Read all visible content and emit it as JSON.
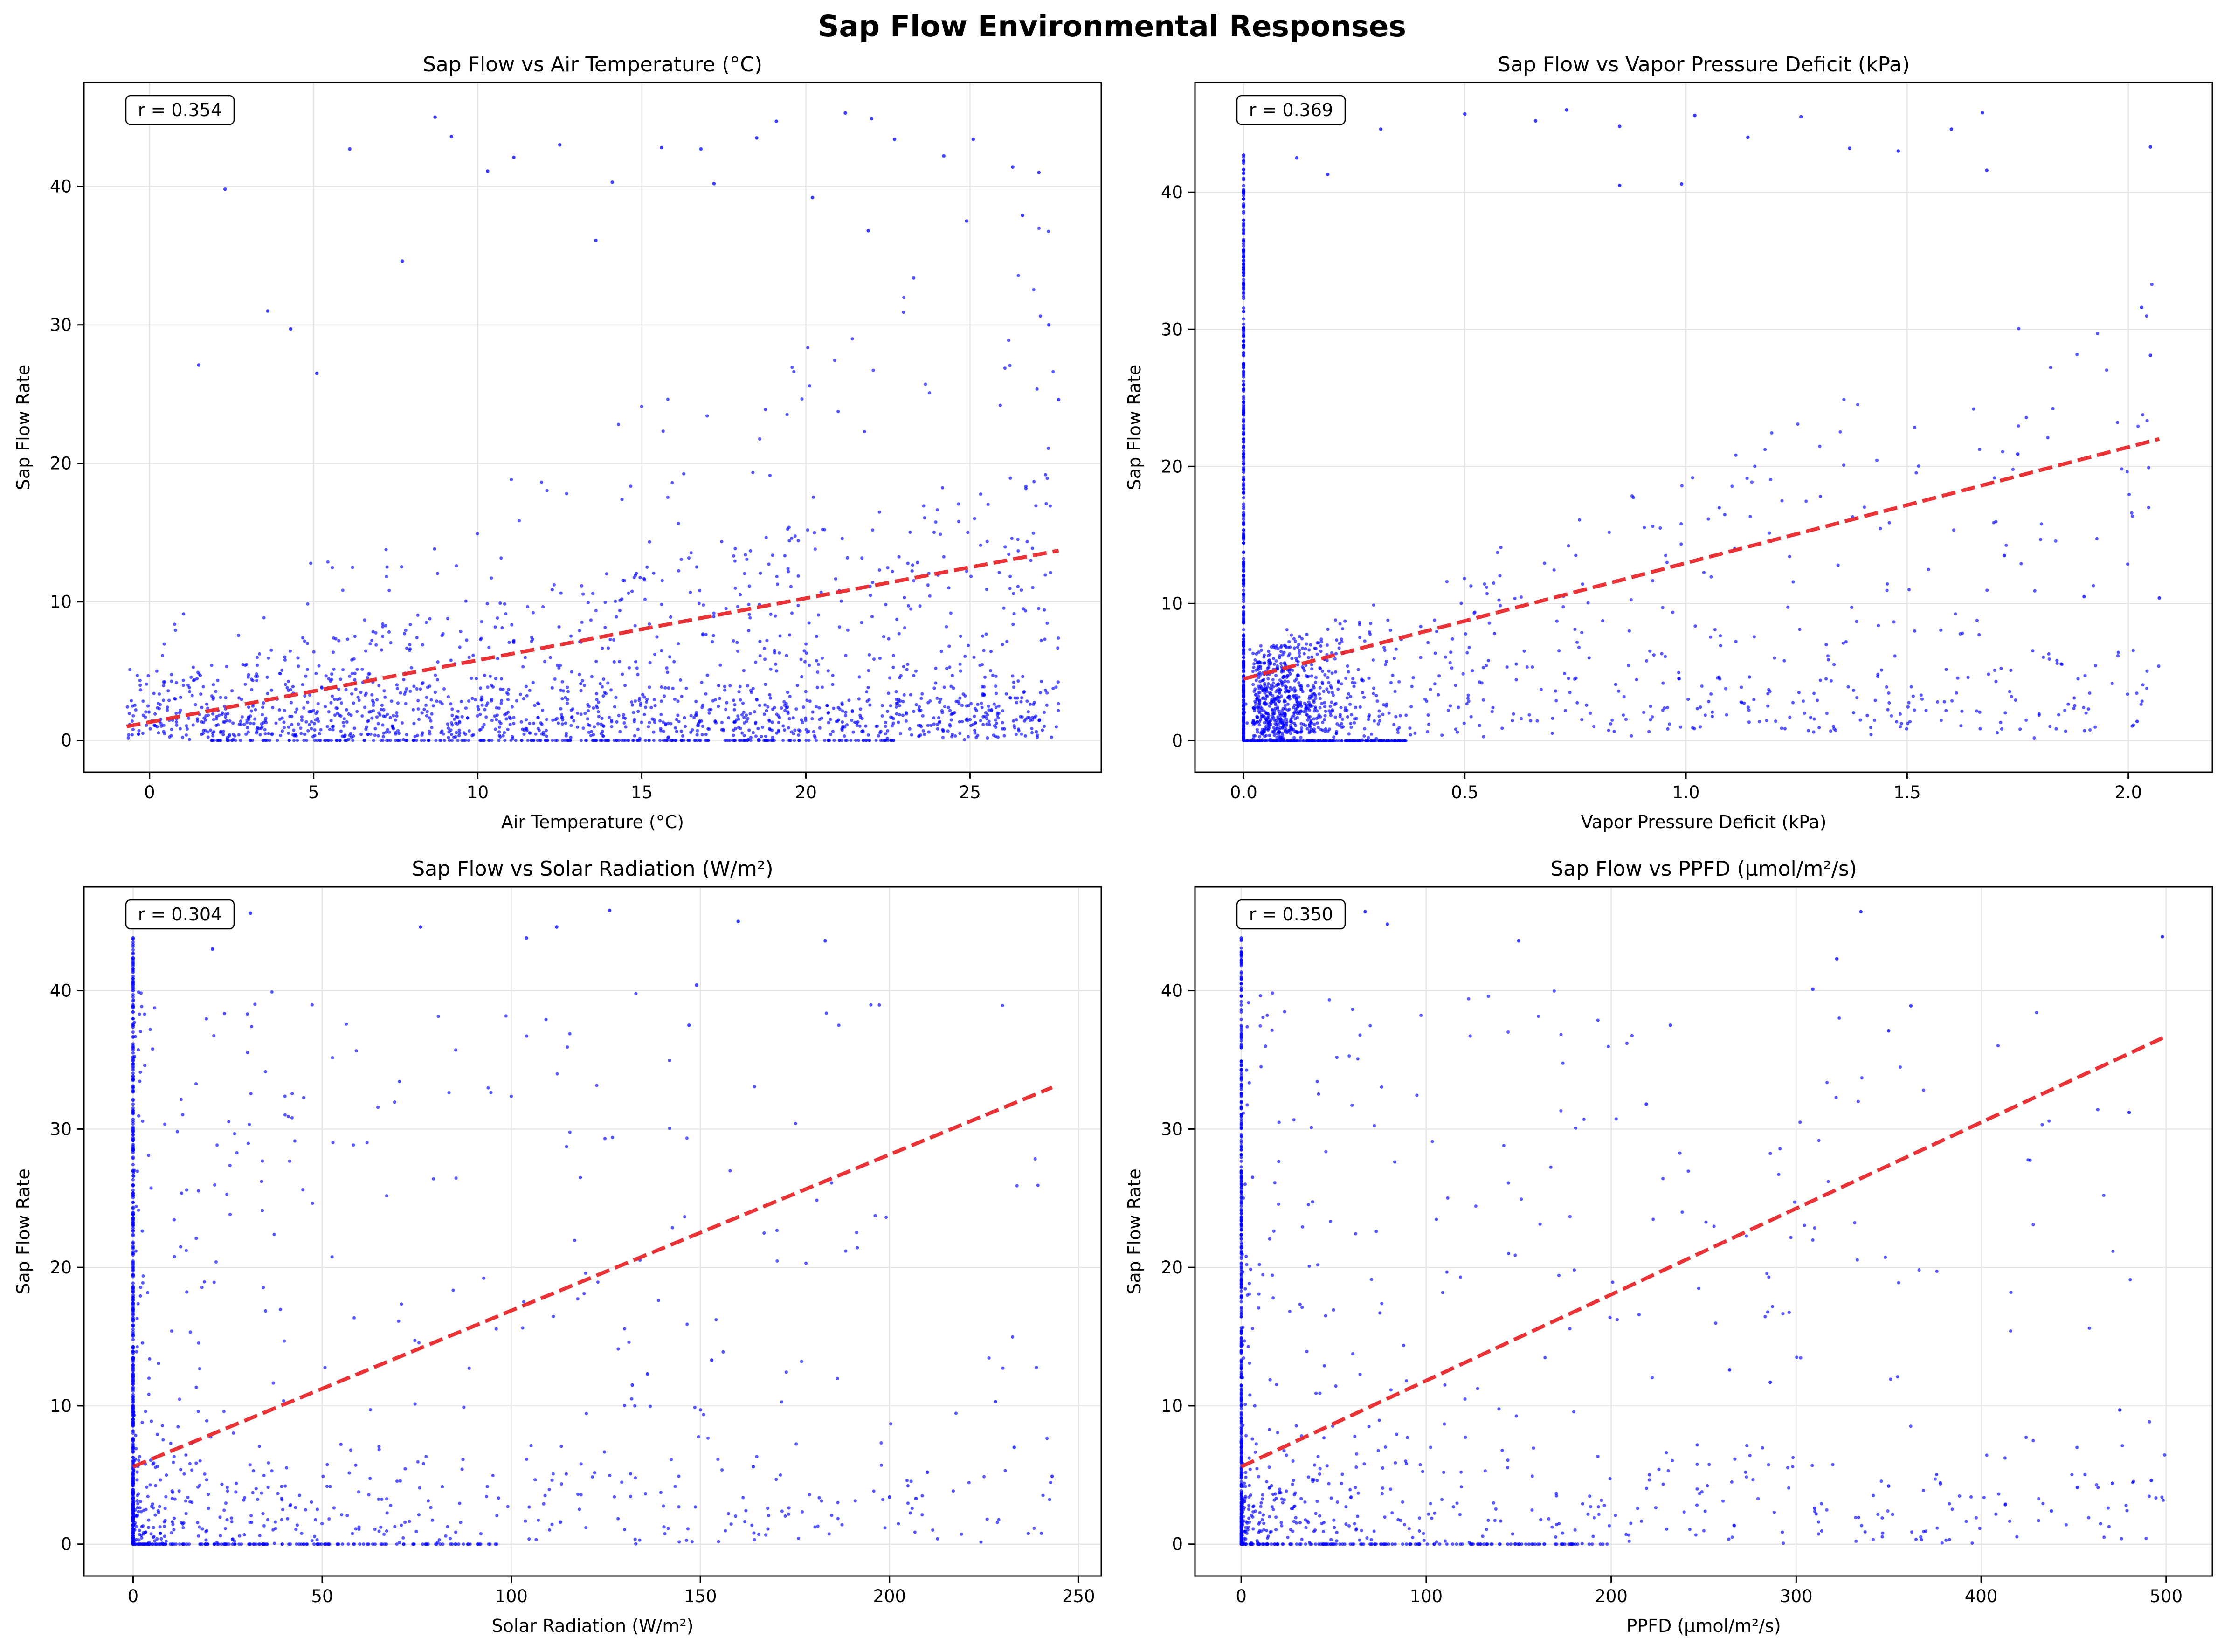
{
  "figure": {
    "title": "Sap Flow Environmental Responses",
    "colors": {
      "points": "#0000ff",
      "fit_line": "#e8282b",
      "grid": "#e5e5e5"
    }
  },
  "chart_data": [
    {
      "type": "scatter",
      "title": "Sap Flow vs Air Temperature (°C)",
      "xlabel": "Air Temperature (°C)",
      "ylabel": "Sap Flow Rate",
      "xlim": [
        -2.0,
        29.0
      ],
      "ylim": [
        -2.3,
        47.5
      ],
      "xticks": [
        0,
        5,
        10,
        15,
        20,
        25
      ],
      "xtick_labels": [
        "0",
        "5",
        "10",
        "15",
        "20",
        "25"
      ],
      "yticks": [
        0,
        10,
        20,
        30,
        40
      ],
      "ytick_labels": [
        "0",
        "10",
        "20",
        "30",
        "40"
      ],
      "grid": true,
      "annotation": "r = 0.354",
      "annotation_position": "top-left",
      "fit_line": {
        "x": [
          -0.7,
          27.7
        ],
        "y": [
          1.0,
          13.7
        ]
      },
      "scatter_model": {
        "x_range": [
          -0.7,
          27.7
        ],
        "y_max": 45.5,
        "zero_x_range": [
          1.6,
          22.7
        ],
        "zero_spike_x": null,
        "zero_spike_ymax": 0,
        "shape": "temp"
      },
      "points": [
        [
          2.3,
          39.8
        ],
        [
          6.1,
          42.7
        ],
        [
          8.7,
          45.0
        ],
        [
          9.2,
          43.6
        ],
        [
          10.3,
          41.1
        ],
        [
          11.1,
          42.1
        ],
        [
          12.5,
          43.0
        ],
        [
          14.1,
          40.3
        ],
        [
          15.6,
          42.8
        ],
        [
          16.8,
          42.7
        ],
        [
          18.5,
          43.5
        ],
        [
          19.1,
          44.7
        ],
        [
          21.2,
          45.3
        ],
        [
          22.0,
          44.9
        ],
        [
          22.7,
          43.4
        ],
        [
          24.2,
          42.2
        ],
        [
          25.1,
          43.4
        ],
        [
          26.3,
          41.4
        ],
        [
          27.1,
          41.0
        ],
        [
          1.5,
          27.1
        ],
        [
          3.6,
          31.0
        ],
        [
          4.3,
          29.7
        ],
        [
          5.1,
          26.5
        ],
        [
          7.7,
          34.6
        ],
        [
          13.6,
          36.1
        ],
        [
          17.2,
          40.2
        ],
        [
          20.2,
          39.2
        ],
        [
          21.9,
          36.8
        ],
        [
          24.9,
          37.5
        ],
        [
          26.6,
          37.9
        ],
        [
          27.4,
          30.0
        ],
        [
          27.7,
          24.6
        ]
      ]
    },
    {
      "type": "scatter",
      "title": "Sap Flow vs Vapor Pressure Deficit (kPa)",
      "xlabel": "Vapor Pressure Deficit (kPa)",
      "ylabel": "Sap Flow Rate",
      "xlim": [
        -0.11,
        2.19
      ],
      "ylim": [
        -2.3,
        48.0
      ],
      "xticks": [
        0.0,
        0.5,
        1.0,
        1.5,
        2.0
      ],
      "xtick_labels": [
        "0.0",
        "0.5",
        "1.0",
        "1.5",
        "2.0"
      ],
      "yticks": [
        0,
        10,
        20,
        30,
        40
      ],
      "ytick_labels": [
        "0",
        "10",
        "20",
        "30",
        "40"
      ],
      "grid": true,
      "annotation": "r = 0.369",
      "annotation_position": "top-left",
      "fit_line": {
        "x": [
          0.0,
          2.07
        ],
        "y": [
          4.5,
          22.0
        ]
      },
      "scatter_model": {
        "x_range": [
          0.0,
          2.07
        ],
        "y_max": 46.0,
        "zero_x_range": [
          0.0,
          0.37
        ],
        "zero_spike_x": 0.0,
        "zero_spike_ymax": 42.7,
        "shape": "vpd"
      },
      "points": [
        [
          0.0,
          42.7
        ],
        [
          0.0,
          39.5
        ],
        [
          0.0,
          35.0
        ],
        [
          0.12,
          42.5
        ],
        [
          0.19,
          41.3
        ],
        [
          0.31,
          44.6
        ],
        [
          0.5,
          45.7
        ],
        [
          0.66,
          45.2
        ],
        [
          0.73,
          46.0
        ],
        [
          0.85,
          44.8
        ],
        [
          1.02,
          45.6
        ],
        [
          1.14,
          44.0
        ],
        [
          1.26,
          45.5
        ],
        [
          1.37,
          43.2
        ],
        [
          1.48,
          43.0
        ],
        [
          1.6,
          44.6
        ],
        [
          1.67,
          45.8
        ],
        [
          1.68,
          41.6
        ],
        [
          2.05,
          43.3
        ],
        [
          2.03,
          31.6
        ],
        [
          2.05,
          28.1
        ],
        [
          2.07,
          10.4
        ],
        [
          2.02,
          1.4
        ],
        [
          1.9,
          10.5
        ],
        [
          1.75,
          20.9
        ],
        [
          1.72,
          13.5
        ],
        [
          0.85,
          40.5
        ],
        [
          0.99,
          40.6
        ]
      ]
    },
    {
      "type": "scatter",
      "title": "Sap Flow vs Solar Radiation (W/m²)",
      "xlabel": "Solar Radiation (W/m²)",
      "ylabel": "Sap Flow Rate",
      "xlim": [
        -13.0,
        256.0
      ],
      "ylim": [
        -2.3,
        47.5
      ],
      "xticks": [
        0,
        50,
        100,
        150,
        200,
        250
      ],
      "xtick_labels": [
        "0",
        "50",
        "100",
        "150",
        "200",
        "250"
      ],
      "yticks": [
        0,
        10,
        20,
        30,
        40
      ],
      "ytick_labels": [
        "0",
        "10",
        "20",
        "30",
        "40"
      ],
      "grid": true,
      "annotation": "r = 0.304",
      "annotation_position": "top-left",
      "fit_line": {
        "x": [
          0.0,
          243.0
        ],
        "y": [
          5.6,
          33.0
        ]
      },
      "scatter_model": {
        "x_range": [
          0.0,
          243.0
        ],
        "y_max": 45.8,
        "zero_x_range": [
          0.0,
          243.0
        ],
        "zero_spike_x": 0.0,
        "zero_spike_ymax": 43.8,
        "shape": "light"
      },
      "points": [
        [
          0.0,
          43.8
        ],
        [
          0.0,
          40.0
        ],
        [
          0.0,
          35.2
        ],
        [
          21.0,
          43.0
        ],
        [
          31.0,
          45.6
        ],
        [
          76.0,
          44.6
        ],
        [
          112.0,
          44.6
        ],
        [
          126.0,
          45.8
        ],
        [
          160.0,
          45.0
        ],
        [
          183.0,
          43.6
        ],
        [
          104.0,
          43.8
        ],
        [
          149.0,
          40.4
        ],
        [
          147.0,
          37.5
        ],
        [
          228.0,
          10.3
        ],
        [
          233.0,
          7.0
        ],
        [
          243.0,
          4.9
        ],
        [
          210.0,
          5.2
        ],
        [
          200.0,
          3.4
        ],
        [
          207.0,
          3.3
        ],
        [
          164.0,
          5.6
        ],
        [
          113.0,
          1.6
        ],
        [
          136.0,
          12.3
        ],
        [
          153.0,
          13.3
        ],
        [
          132.0,
          11.5
        ]
      ]
    },
    {
      "type": "scatter",
      "title": "Sap Flow vs PPFD (µmol/m²/s)",
      "xlabel": "PPFD (µmol/m²/s)",
      "ylabel": "Sap Flow Rate",
      "xlim": [
        -25.0,
        525.0
      ],
      "ylim": [
        -2.3,
        47.5
      ],
      "xticks": [
        0,
        100,
        200,
        300,
        400,
        500
      ],
      "xtick_labels": [
        "0",
        "100",
        "200",
        "300",
        "400",
        "500"
      ],
      "yticks": [
        0,
        10,
        20,
        30,
        40
      ],
      "ytick_labels": [
        "0",
        "10",
        "20",
        "30",
        "40"
      ],
      "grid": true,
      "annotation": "r = 0.350",
      "annotation_position": "top-left",
      "fit_line": {
        "x": [
          0.0,
          500.0
        ],
        "y": [
          5.6,
          36.7
        ]
      },
      "scatter_model": {
        "x_range": [
          0.0,
          500.0
        ],
        "y_max": 45.8,
        "zero_x_range": [
          0.0,
          100.0
        ],
        "zero_spike_x": 0.0,
        "zero_spike_ymax": 43.8,
        "shape": "light"
      },
      "points": [
        [
          0.0,
          43.8
        ],
        [
          0.0,
          40.5
        ],
        [
          0.0,
          36.0
        ],
        [
          67.0,
          45.7
        ],
        [
          79.0,
          44.8
        ],
        [
          335.0,
          45.7
        ],
        [
          498.0,
          43.9
        ],
        [
          309.0,
          40.1
        ],
        [
          322.0,
          42.3
        ],
        [
          362.0,
          38.9
        ],
        [
          350.0,
          37.1
        ],
        [
          475.0,
          9.7
        ],
        [
          480.0,
          31.2
        ],
        [
          492.0,
          4.6
        ],
        [
          452.0,
          4.1
        ],
        [
          471.0,
          4.4
        ],
        [
          438.0,
          2.4
        ],
        [
          350.0,
          4.2
        ],
        [
          310.0,
          2.6
        ],
        [
          286.0,
          11.7
        ],
        [
          264.0,
          12.6
        ],
        [
          219.0,
          31.8
        ],
        [
          232.0,
          37.5
        ],
        [
          150.0,
          43.6
        ]
      ]
    }
  ]
}
